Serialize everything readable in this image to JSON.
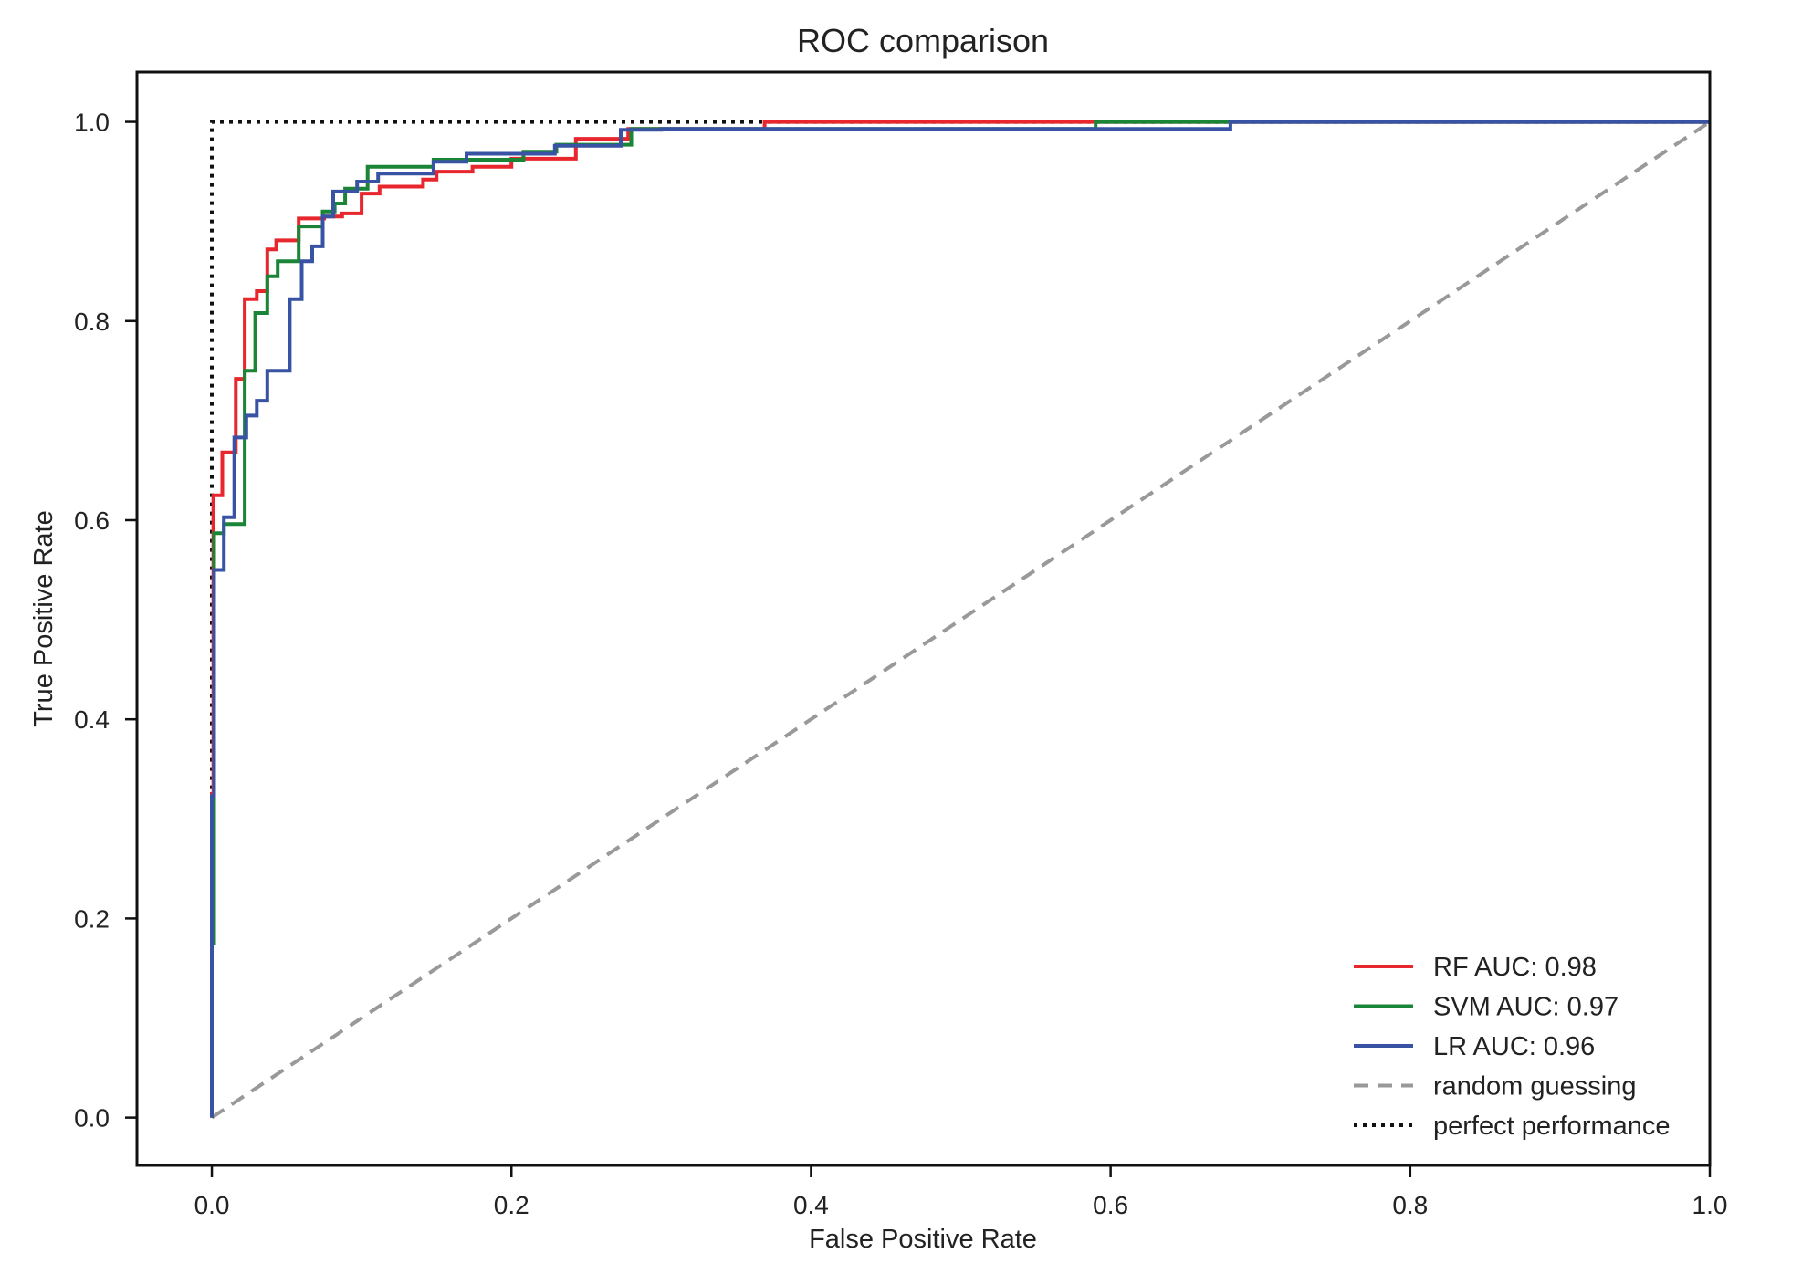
{
  "chart_data": {
    "type": "line",
    "title": "ROC comparison",
    "xlabel": "False Positive Rate",
    "ylabel": "True Positive Rate",
    "xlim": [
      -0.05,
      1.0
    ],
    "ylim": [
      -0.048,
      1.05
    ],
    "xticks": [
      "0.0",
      "0.2",
      "0.4",
      "0.6",
      "0.8",
      "1.0"
    ],
    "yticks": [
      "0.0",
      "0.2",
      "0.4",
      "0.6",
      "0.8",
      "1.0"
    ],
    "grid": false,
    "legend_position": "bottom-right",
    "series": [
      {
        "name": "RF AUC: 0.98",
        "color": "#e8262d",
        "style": "solid",
        "x": [
          0,
          0,
          0.001,
          0.001,
          0.007,
          0.007,
          0.016,
          0.016,
          0.022,
          0.022,
          0.03,
          0.03,
          0.037,
          0.037,
          0.043,
          0.043,
          0.058,
          0.058,
          0.075,
          0.075,
          0.087,
          0.087,
          0.1,
          0.1,
          0.112,
          0.112,
          0.141,
          0.141,
          0.15,
          0.15,
          0.174,
          0.174,
          0.2,
          0.2,
          0.243,
          0.243,
          0.278,
          0.278,
          0.369,
          0.369,
          1.0
        ],
        "y": [
          0,
          0.325,
          0.325,
          0.625,
          0.625,
          0.668,
          0.668,
          0.742,
          0.742,
          0.822,
          0.822,
          0.83,
          0.83,
          0.872,
          0.872,
          0.881,
          0.881,
          0.903,
          0.903,
          0.905,
          0.905,
          0.908,
          0.908,
          0.928,
          0.928,
          0.935,
          0.935,
          0.942,
          0.942,
          0.95,
          0.95,
          0.955,
          0.955,
          0.963,
          0.963,
          0.983,
          0.983,
          0.993,
          0.993,
          1.0,
          1.0
        ]
      },
      {
        "name": "SVM AUC: 0.97",
        "color": "#1a8437",
        "style": "solid",
        "x": [
          0,
          0,
          0.0015,
          0.0015,
          0.008,
          0.008,
          0.022,
          0.022,
          0.029,
          0.029,
          0.037,
          0.037,
          0.044,
          0.044,
          0.058,
          0.058,
          0.074,
          0.074,
          0.082,
          0.082,
          0.089,
          0.089,
          0.104,
          0.104,
          0.148,
          0.148,
          0.208,
          0.208,
          0.23,
          0.23,
          0.28,
          0.28,
          0.59,
          0.59,
          1.0
        ],
        "y": [
          0,
          0.175,
          0.175,
          0.587,
          0.587,
          0.596,
          0.596,
          0.75,
          0.75,
          0.808,
          0.808,
          0.845,
          0.845,
          0.86,
          0.86,
          0.895,
          0.895,
          0.91,
          0.91,
          0.918,
          0.918,
          0.933,
          0.933,
          0.955,
          0.955,
          0.962,
          0.962,
          0.97,
          0.97,
          0.977,
          0.977,
          0.993,
          0.993,
          1.0,
          1.0
        ]
      },
      {
        "name": "LR AUC: 0.96",
        "color": "#3953a4",
        "style": "solid",
        "x": [
          0,
          0,
          0.0015,
          0.0015,
          0.008,
          0.008,
          0.015,
          0.015,
          0.023,
          0.023,
          0.03,
          0.03,
          0.037,
          0.037,
          0.052,
          0.052,
          0.06,
          0.06,
          0.067,
          0.067,
          0.074,
          0.074,
          0.081,
          0.081,
          0.097,
          0.097,
          0.111,
          0.111,
          0.148,
          0.148,
          0.17,
          0.17,
          0.229,
          0.229,
          0.273,
          0.273,
          0.3,
          0.3,
          0.68,
          0.68,
          1.0
        ],
        "y": [
          0,
          0.323,
          0.323,
          0.55,
          0.55,
          0.603,
          0.603,
          0.683,
          0.683,
          0.705,
          0.705,
          0.72,
          0.72,
          0.75,
          0.75,
          0.822,
          0.822,
          0.86,
          0.86,
          0.875,
          0.875,
          0.905,
          0.905,
          0.93,
          0.93,
          0.94,
          0.94,
          0.948,
          0.948,
          0.96,
          0.96,
          0.968,
          0.968,
          0.976,
          0.976,
          0.992,
          0.992,
          0.993,
          0.993,
          1.0,
          1.0
        ]
      },
      {
        "name": "random guessing",
        "color": "#999999",
        "style": "dashed",
        "x": [
          0,
          1
        ],
        "y": [
          0,
          1
        ]
      },
      {
        "name": "perfect performance",
        "color": "#111111",
        "style": "dotted",
        "x": [
          0,
          0,
          1
        ],
        "y": [
          0,
          1,
          1
        ]
      }
    ]
  }
}
